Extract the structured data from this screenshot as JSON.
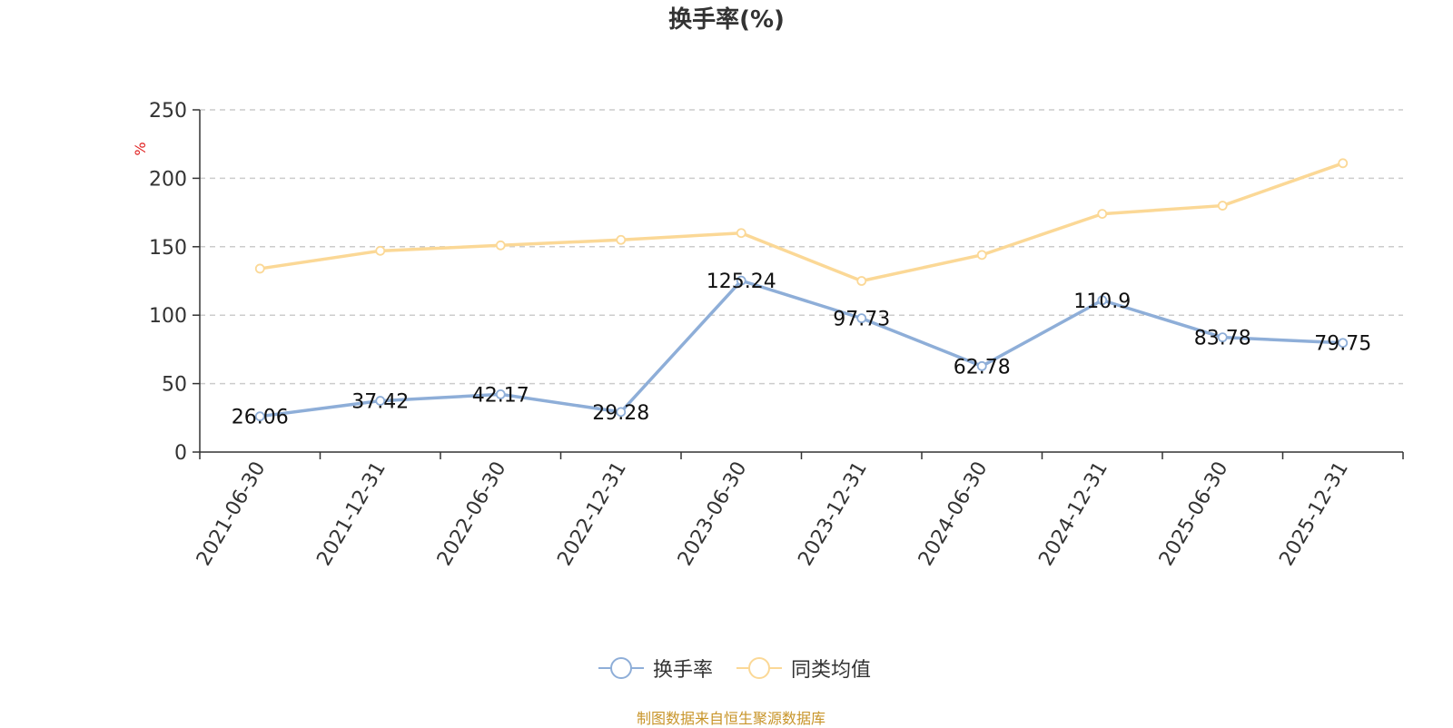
{
  "title": "换手率(%)",
  "source_note": "制图数据来自恒生聚源数据库",
  "chart_data": {
    "type": "line",
    "title": "换手率(%)",
    "xlabel": "",
    "ylabel": "%",
    "ylim": [
      0,
      250
    ],
    "yticks": [
      0,
      50,
      100,
      150,
      200,
      250
    ],
    "grid": true,
    "legend_position": "bottom-center",
    "categories": [
      "2021-06-30",
      "2021-12-31",
      "2022-06-30",
      "2022-12-31",
      "2023-06-30",
      "2023-12-31",
      "2024-06-30",
      "2024-12-31",
      "2025-06-30",
      "2025-12-31"
    ],
    "series": [
      {
        "name": "换手率",
        "color": "#8eaed8",
        "values": [
          26.06,
          37.42,
          42.17,
          29.28,
          125.24,
          97.73,
          62.78,
          110.9,
          83.78,
          79.75
        ],
        "labels": [
          "26.06",
          "37.42",
          "42.17",
          "29.28",
          "125.24",
          "97.73",
          "62.78",
          "110.9",
          "83.78",
          "79.75"
        ],
        "show_labels": true
      },
      {
        "name": "同类均值",
        "color": "#fbd896",
        "values": [
          134,
          147,
          151,
          155,
          160,
          125,
          144,
          174,
          180,
          211
        ],
        "show_labels": false
      }
    ]
  }
}
